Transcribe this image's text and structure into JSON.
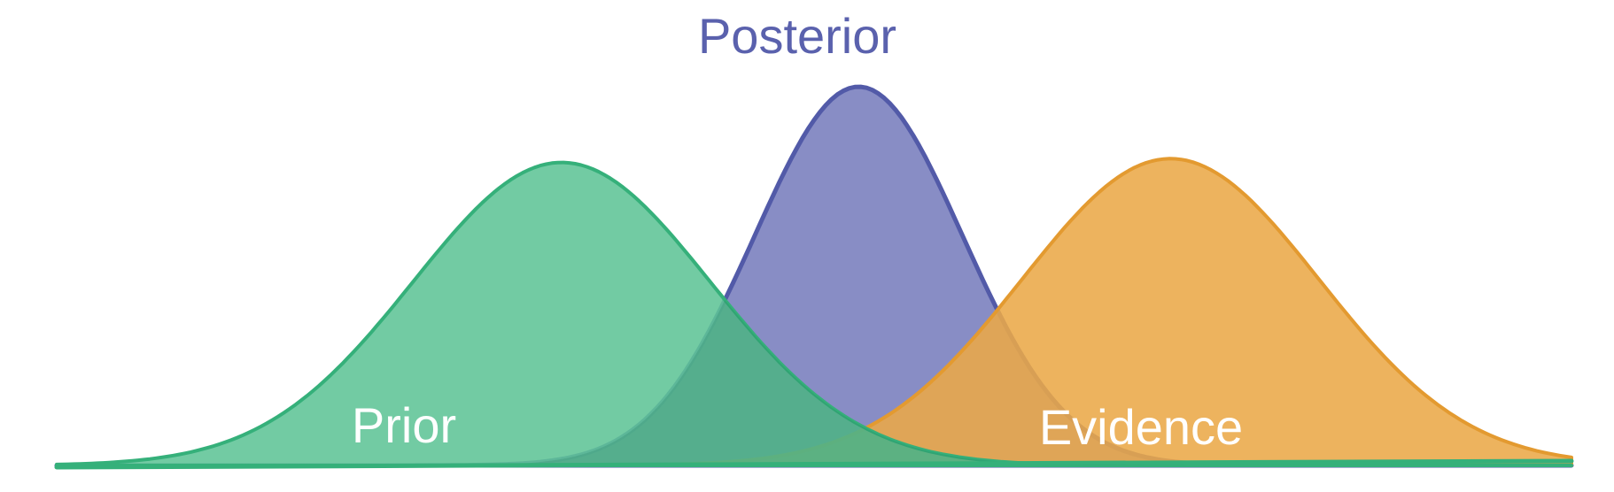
{
  "labels": {
    "posterior": "Posterior",
    "prior": "Prior",
    "evidence": "Evidence"
  },
  "curves": {
    "prior": {
      "mean": -2.0,
      "sd": 1.0,
      "relative_peak": 0.8
    },
    "posterior": {
      "mean": 0.0,
      "sd": 0.7,
      "relative_peak": 1.0
    },
    "evidence": {
      "mean": 2.1,
      "sd": 1.0,
      "relative_peak": 0.81
    }
  },
  "colors": {
    "prior_fill": "#5ec496",
    "prior_stroke": "#35b07a",
    "posterior_fill": "#7e83c0",
    "posterior_stroke": "#525aa8",
    "evidence_fill": "#eaa948",
    "evidence_stroke": "#e39a30",
    "posterior_label": "#5a61ad",
    "inner_label": "#ffffff"
  }
}
